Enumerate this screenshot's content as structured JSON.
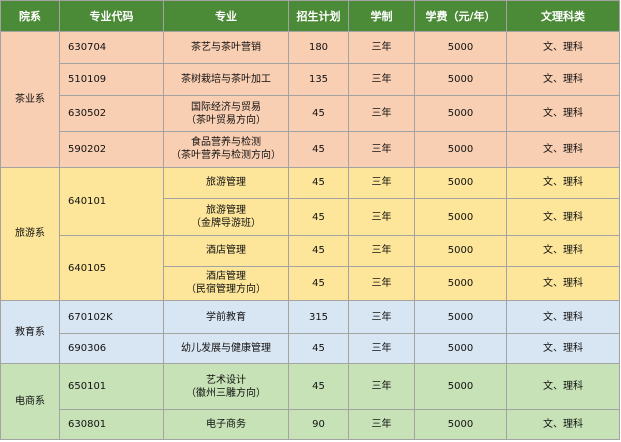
{
  "headers": [
    "院系",
    "专业代码",
    "专业",
    "招生计划",
    "学制",
    "学费（元/年）",
    "文理科类"
  ],
  "groups": [
    {
      "department": "茶业系",
      "rows": [
        {
          "code": "630704",
          "major": "茶艺与茶叶营销",
          "plan": "180",
          "duration": "三年",
          "tuition": "5000",
          "category": "文、理科"
        },
        {
          "code": "510109",
          "major": "茶树栽培与茶叶加工",
          "plan": "135",
          "duration": "三年",
          "tuition": "5000",
          "category": "文、理科"
        },
        {
          "code": "630502",
          "major": "国际经济与贸易\n（茶叶贸易方向）",
          "plan": "45",
          "duration": "三年",
          "tuition": "5000",
          "category": "文、理科"
        },
        {
          "code": "590202",
          "major": "食品营养与检测\n（茶叶营养与检测方向）",
          "plan": "45",
          "duration": "三年",
          "tuition": "5000",
          "category": "文、理科"
        }
      ]
    },
    {
      "department": "旅游系",
      "rows": [
        {
          "code": "640101",
          "major": "旅游管理",
          "plan": "45",
          "duration": "三年",
          "tuition": "5000",
          "category": "文、理科"
        },
        {
          "code": "",
          "major": "旅游管理\n（金牌导游班）",
          "plan": "45",
          "duration": "三年",
          "tuition": "5000",
          "category": "文、理科"
        },
        {
          "code": "640105",
          "major": "酒店管理",
          "plan": "45",
          "duration": "三年",
          "tuition": "5000",
          "category": "文、理科"
        },
        {
          "code": "",
          "major": "酒店管理\n（民宿管理方向）",
          "plan": "45",
          "duration": "三年",
          "tuition": "5000",
          "category": "文、理科"
        }
      ]
    },
    {
      "department": "教育系",
      "rows": [
        {
          "code": "670102K",
          "major": "学前教育",
          "plan": "315",
          "duration": "三年",
          "tuition": "5000",
          "category": "文、理科"
        },
        {
          "code": "690306",
          "major": "幼儿发展与健康管理",
          "plan": "45",
          "duration": "三年",
          "tuition": "5000",
          "category": "文、理科"
        }
      ]
    },
    {
      "department": "电商系",
      "rows": [
        {
          "code": "650101",
          "major": "艺术设计\n（徽州三雕方向）",
          "plan": "45",
          "duration": "三年",
          "tuition": "5000",
          "category": "文、理科"
        },
        {
          "code": "630801",
          "major": "电子商务",
          "plan": "90",
          "duration": "三年",
          "tuition": "5000",
          "category": "文、理科"
        }
      ]
    }
  ]
}
